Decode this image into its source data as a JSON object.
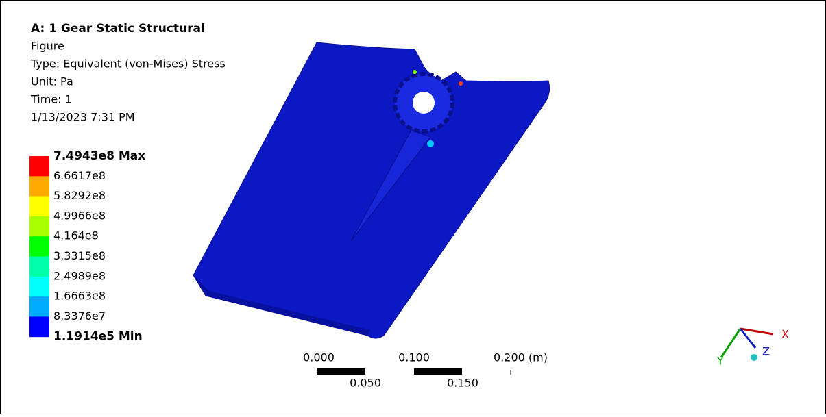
{
  "header": {
    "title": "A: 1 Gear Static Structural",
    "lines": [
      "Figure",
      "Type: Equivalent (von-Mises) Stress",
      "Unit: Pa",
      "Time: 1",
      "1/13/2023 7:31 PM"
    ]
  },
  "legend": {
    "labels": [
      "7.4943e8 Max",
      "6.6617e8",
      "5.8292e8",
      "4.9966e8",
      "4.164e8",
      "3.3315e8",
      "2.4989e8",
      "1.6663e8",
      "8.3376e7",
      "1.1914e5 Min"
    ],
    "colors": [
      "#ff0000",
      "#ffaa00",
      "#ffff00",
      "#aaff00",
      "#00ff00",
      "#00ffaa",
      "#00ffff",
      "#00aaff",
      "#0000ff"
    ]
  },
  "scale": {
    "top": [
      "0.000",
      "0.100",
      "0.200 (m)"
    ],
    "bottom": [
      "0.050",
      "0.150"
    ]
  },
  "triad": {
    "x": "X",
    "y": "Y",
    "z": "Z"
  }
}
